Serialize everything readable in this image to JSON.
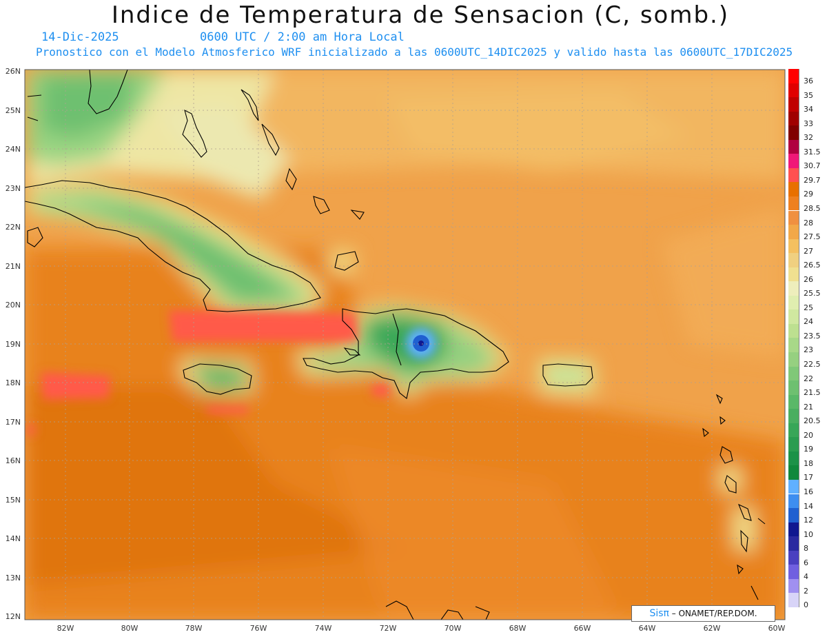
{
  "header": {
    "title": "Indice de Temperatura de Sensacion (C, somb.)",
    "date": "14-Dic-2025",
    "time": "0600 UTC / 2:00 am Hora Local",
    "model_line": "Pronostico con el Modelo Atmosferico WRF inicializado a las 0600UTC_14DIC2025 y valido hasta las  0600UTC_17DIC2025"
  },
  "axes": {
    "lat_labels": [
      "26N",
      "25N",
      "24N",
      "23N",
      "22N",
      "21N",
      "20N",
      "19N",
      "18N",
      "17N",
      "16N",
      "15N",
      "14N",
      "13N",
      "12N"
    ],
    "lon_labels": [
      "82W",
      "80W",
      "78W",
      "76W",
      "74W",
      "72W",
      "70W",
      "68W",
      "66W",
      "64W",
      "62W",
      "60W"
    ]
  },
  "legend": {
    "items": [
      {
        "label": "36",
        "color": "#ff0000"
      },
      {
        "label": "35",
        "color": "#e00000"
      },
      {
        "label": "34",
        "color": "#c00000"
      },
      {
        "label": "33",
        "color": "#a00000"
      },
      {
        "label": "32",
        "color": "#800000"
      },
      {
        "label": "31.5",
        "color": "#b00040"
      },
      {
        "label": "30.7",
        "color": "#f01878"
      },
      {
        "label": "29.7",
        "color": "#ff5050"
      },
      {
        "label": "29",
        "color": "#e87000"
      },
      {
        "label": "28.5",
        "color": "#ee8020"
      },
      {
        "label": "28",
        "color": "#f09040"
      },
      {
        "label": "27.5",
        "color": "#f2a848"
      },
      {
        "label": "27",
        "color": "#f4c060"
      },
      {
        "label": "26.5",
        "color": "#f0d080"
      },
      {
        "label": "26",
        "color": "#f0e090"
      },
      {
        "label": "25.5",
        "color": "#eeeebc"
      },
      {
        "label": "25",
        "color": "#e0eeb0"
      },
      {
        "label": "24",
        "color": "#d0e8a0"
      },
      {
        "label": "23.5",
        "color": "#bde090"
      },
      {
        "label": "23",
        "color": "#a8d888"
      },
      {
        "label": "22.5",
        "color": "#96d080"
      },
      {
        "label": "22",
        "color": "#80c878"
      },
      {
        "label": "21.5",
        "color": "#6ec070"
      },
      {
        "label": "21",
        "color": "#5ab868"
      },
      {
        "label": "20.5",
        "color": "#4aae60"
      },
      {
        "label": "20",
        "color": "#38a658"
      },
      {
        "label": "19",
        "color": "#2a9c50"
      },
      {
        "label": "18",
        "color": "#1c9248"
      },
      {
        "label": "17",
        "color": "#10883c"
      },
      {
        "label": "16",
        "color": "#60b0ff"
      },
      {
        "label": "14",
        "color": "#3e8ef0"
      },
      {
        "label": "12",
        "color": "#2060d0"
      },
      {
        "label": "10",
        "color": "#101890"
      },
      {
        "label": "8",
        "color": "#2a2aa0"
      },
      {
        "label": "6",
        "color": "#4a40c0"
      },
      {
        "label": "4",
        "color": "#7060e0"
      },
      {
        "label": "2",
        "color": "#a090f0"
      },
      {
        "label": "0",
        "color": "#d8d4f8"
      }
    ]
  },
  "credit": {
    "sis": "Sisπ",
    "text": "– ONAMET/REP.DOM."
  }
}
